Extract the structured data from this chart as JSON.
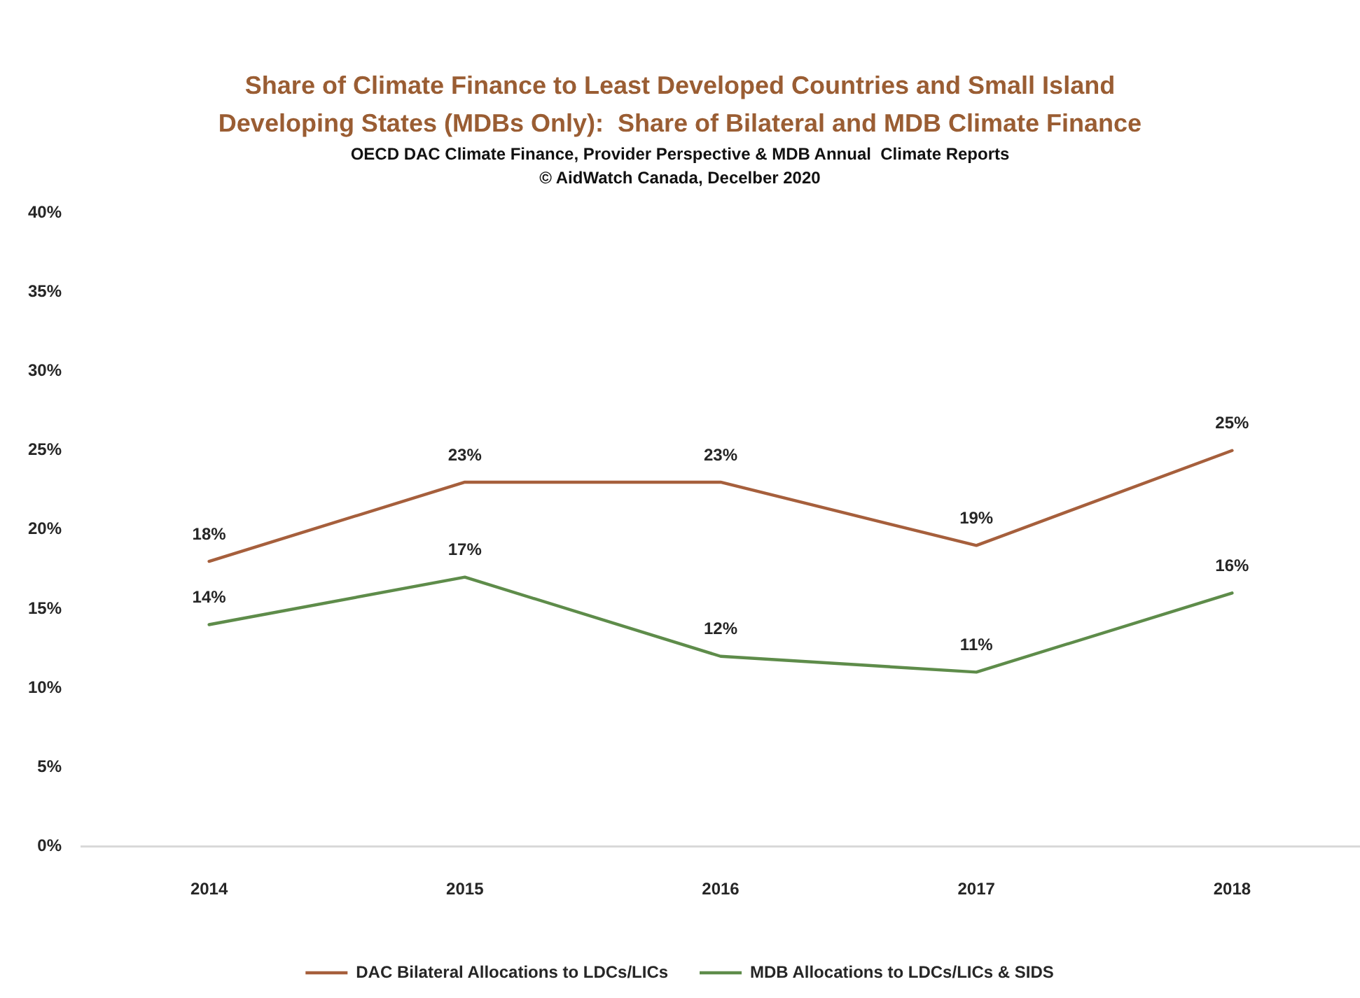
{
  "chart_data": {
    "type": "line",
    "title": "Share of Climate Finance to Least Developed Countries and Small Island Developing States (MDBs Only):  Share of Bilateral and MDB Climate Finance",
    "subtitle": "OECD DAC Climate Finance, Provider Perspective & MDB Annual  Climate Reports",
    "annotations": [
      "© AidWatch Canada, Decelber 2020"
    ],
    "categories": [
      "2014",
      "2015",
      "2016",
      "2017",
      "2018"
    ],
    "series": [
      {
        "name": "DAC Bilateral Allocations to LDCs/LICs",
        "color": "#a65f3c",
        "values": [
          18,
          23,
          23,
          19,
          25
        ],
        "value_labels": [
          "18%",
          "23%",
          "23%",
          "19%",
          "25%"
        ]
      },
      {
        "name": "MDB Allocations to LDCs/LICs & SIDS",
        "color": "#5e8c4a",
        "values": [
          14,
          17,
          12,
          11,
          16
        ],
        "value_labels": [
          "14%",
          "17%",
          "12%",
          "11%",
          "16%"
        ]
      }
    ],
    "ylim": [
      0,
      40
    ],
    "yticks": [
      {
        "value": 0,
        "label": "0%"
      },
      {
        "value": 5,
        "label": "5%"
      },
      {
        "value": 10,
        "label": "10%"
      },
      {
        "value": 15,
        "label": "15%"
      },
      {
        "value": 20,
        "label": "20%"
      },
      {
        "value": 25,
        "label": "25%"
      },
      {
        "value": 30,
        "label": "30%"
      },
      {
        "value": 35,
        "label": "35%"
      },
      {
        "value": 40,
        "label": "40%"
      }
    ],
    "legend": "bottom",
    "marker": "none",
    "line_style": "solid"
  }
}
